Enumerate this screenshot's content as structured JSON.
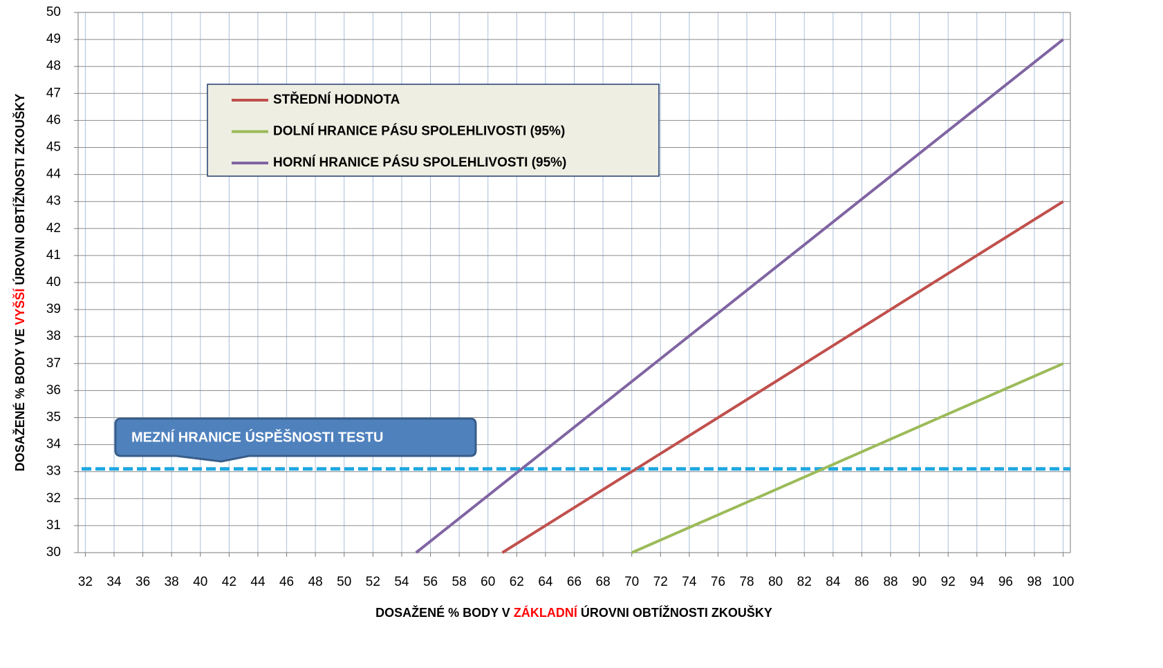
{
  "chart_data": {
    "type": "line",
    "ylabel": [
      "DOSAŽENÉ % BODY VE",
      "VYŠŠÍ",
      "ÚROVNI OBTÍŽNOSTI ZKOUŠKY"
    ],
    "xlabel": [
      "DOSAŽENÉ % BODY V",
      "ZÁKLADNÍ",
      "ÚROVNI OBTÍŽNOSTI ZKOUŠKY"
    ],
    "label_highlight_color": "#ff0000",
    "xlim": [
      31.5,
      100.5
    ],
    "xticks": [
      32,
      34,
      36,
      38,
      40,
      42,
      44,
      46,
      48,
      50,
      52,
      54,
      56,
      58,
      60,
      62,
      64,
      66,
      68,
      70,
      72,
      74,
      76,
      78,
      80,
      82,
      84,
      86,
      88,
      90,
      92,
      94,
      96,
      98,
      100
    ],
    "ylim": [
      30,
      50
    ],
    "yticks": [
      30,
      31,
      32,
      33,
      34,
      35,
      36,
      37,
      38,
      39,
      40,
      41,
      42,
      43,
      44,
      45,
      46,
      47,
      48,
      49,
      50
    ],
    "grid": true,
    "series": [
      {
        "name": "STŘEDNÍ HODNOTA",
        "color": "#c0504d",
        "x": [
          61,
          70,
          80,
          90,
          100
        ],
        "values": [
          30,
          33,
          36.33,
          39.67,
          43
        ]
      },
      {
        "name": "DOLNÍ HRANICE PÁSU SPOLEHLIVOSTI (95%)",
        "color": "#9bbb59",
        "x": [
          70,
          80,
          90,
          100
        ],
        "values": [
          30,
          32.33,
          34.67,
          37
        ]
      },
      {
        "name": "HORNÍ HRANICE PÁSU SPOLEHLIVOSTI (95%)",
        "color": "#8064a2",
        "x": [
          55,
          64,
          73,
          82,
          91,
          100
        ],
        "values": [
          30,
          33.8,
          37.6,
          41.4,
          45.2,
          49
        ]
      }
    ],
    "threshold": {
      "value": 33.1,
      "color": "#1ea7e1",
      "label": "MEZNÍ HRANICE ÚSPĚŠNOSTI TESTU"
    }
  }
}
